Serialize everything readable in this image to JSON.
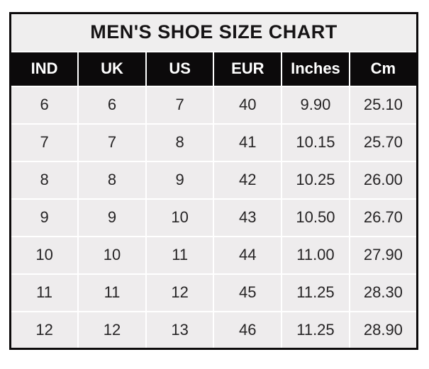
{
  "colors": {
    "page_background": "#ffffff",
    "outer_border": "#0c0a0b",
    "title_background": "#efeeee",
    "title_text": "#161415",
    "header_background": "#0c0a0b",
    "header_text": "#ffffff",
    "cell_background": "#eeeced",
    "cell_text": "#262425",
    "gridline": "#ffffff"
  },
  "chart_data": {
    "type": "table",
    "title": "MEN'S SHOE SIZE CHART",
    "columns": [
      "IND",
      "UK",
      "US",
      "EUR",
      "Inches",
      "Cm"
    ],
    "rows": [
      [
        "6",
        "6",
        "7",
        "40",
        "9.90",
        "25.10"
      ],
      [
        "7",
        "7",
        "8",
        "41",
        "10.15",
        "25.70"
      ],
      [
        "8",
        "8",
        "9",
        "42",
        "10.25",
        "26.00"
      ],
      [
        "9",
        "9",
        "10",
        "43",
        "10.50",
        "26.70"
      ],
      [
        "10",
        "10",
        "11",
        "44",
        "11.00",
        "27.90"
      ],
      [
        "11",
        "11",
        "12",
        "45",
        "11.25",
        "28.30"
      ],
      [
        "12",
        "12",
        "13",
        "46",
        "11.25",
        "28.90"
      ]
    ]
  }
}
